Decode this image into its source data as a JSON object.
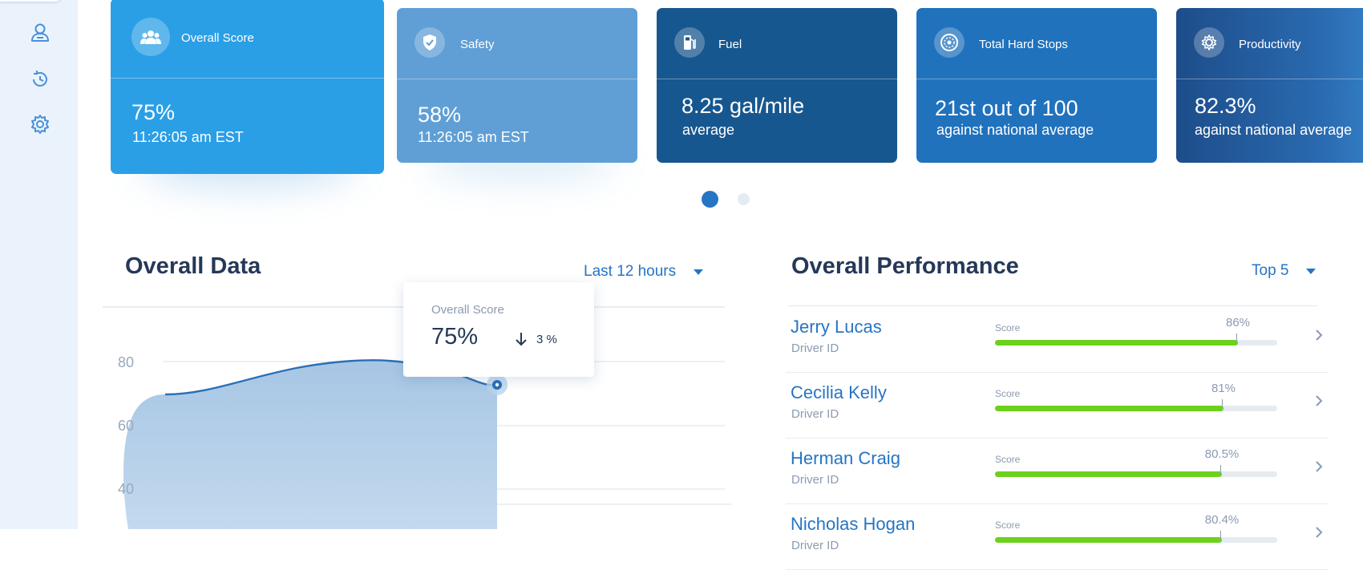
{
  "sidebar": {
    "items": [
      {
        "icon": "user-icon"
      },
      {
        "icon": "history-icon"
      },
      {
        "icon": "gear-icon"
      }
    ]
  },
  "cards": [
    {
      "title": "Overall Score",
      "value": "75%",
      "sub": "11:26:05 am EST",
      "icon": "group-icon",
      "color": "#2b9fe6"
    },
    {
      "title": "Safety",
      "value": "58%",
      "sub": "11:26:05 am EST",
      "icon": "shield-icon",
      "color": "#5f9fd6"
    },
    {
      "title": "Fuel",
      "value": "8.25 gal/mile",
      "sub": "average",
      "icon": "fuel-pump-icon",
      "color": "#17578f"
    },
    {
      "title": "Total Hard Stops",
      "value": "21st out of 100",
      "sub": "against national average",
      "icon": "gauge-icon",
      "color": "#2072bd"
    },
    {
      "title": "Productivity",
      "value": "82.3%",
      "sub": "against national average",
      "icon": "productivity-icon",
      "color": "#1d4d8a"
    }
  ],
  "pagination": {
    "active": 1,
    "total": 2
  },
  "overall_data": {
    "title": "Overall Data",
    "range_label": "Last 12 hours",
    "tooltip": {
      "label": "Overall Score",
      "value": "75%",
      "change": "3 %"
    }
  },
  "chart_data": {
    "type": "area",
    "title": "Overall Data",
    "y_ticks": [
      "80",
      "60",
      "40"
    ],
    "series": [
      {
        "name": "Overall Score"
      }
    ]
  },
  "overall_performance": {
    "title": "Overall Performance",
    "filter_label": "Top 5",
    "score_label": "Score",
    "rows": [
      {
        "name": "Jerry Lucas",
        "id_label": "Driver ID",
        "score_text": "86%",
        "score": 86
      },
      {
        "name": "Cecilia Kelly",
        "id_label": "Driver ID",
        "score_text": "81%",
        "score": 81
      },
      {
        "name": "Herman Craig",
        "id_label": "Driver ID",
        "score_text": "80.5%",
        "score": 80.5
      },
      {
        "name": "Nicholas Hogan",
        "id_label": "Driver ID",
        "score_text": "80.4%",
        "score": 80.4
      }
    ]
  }
}
